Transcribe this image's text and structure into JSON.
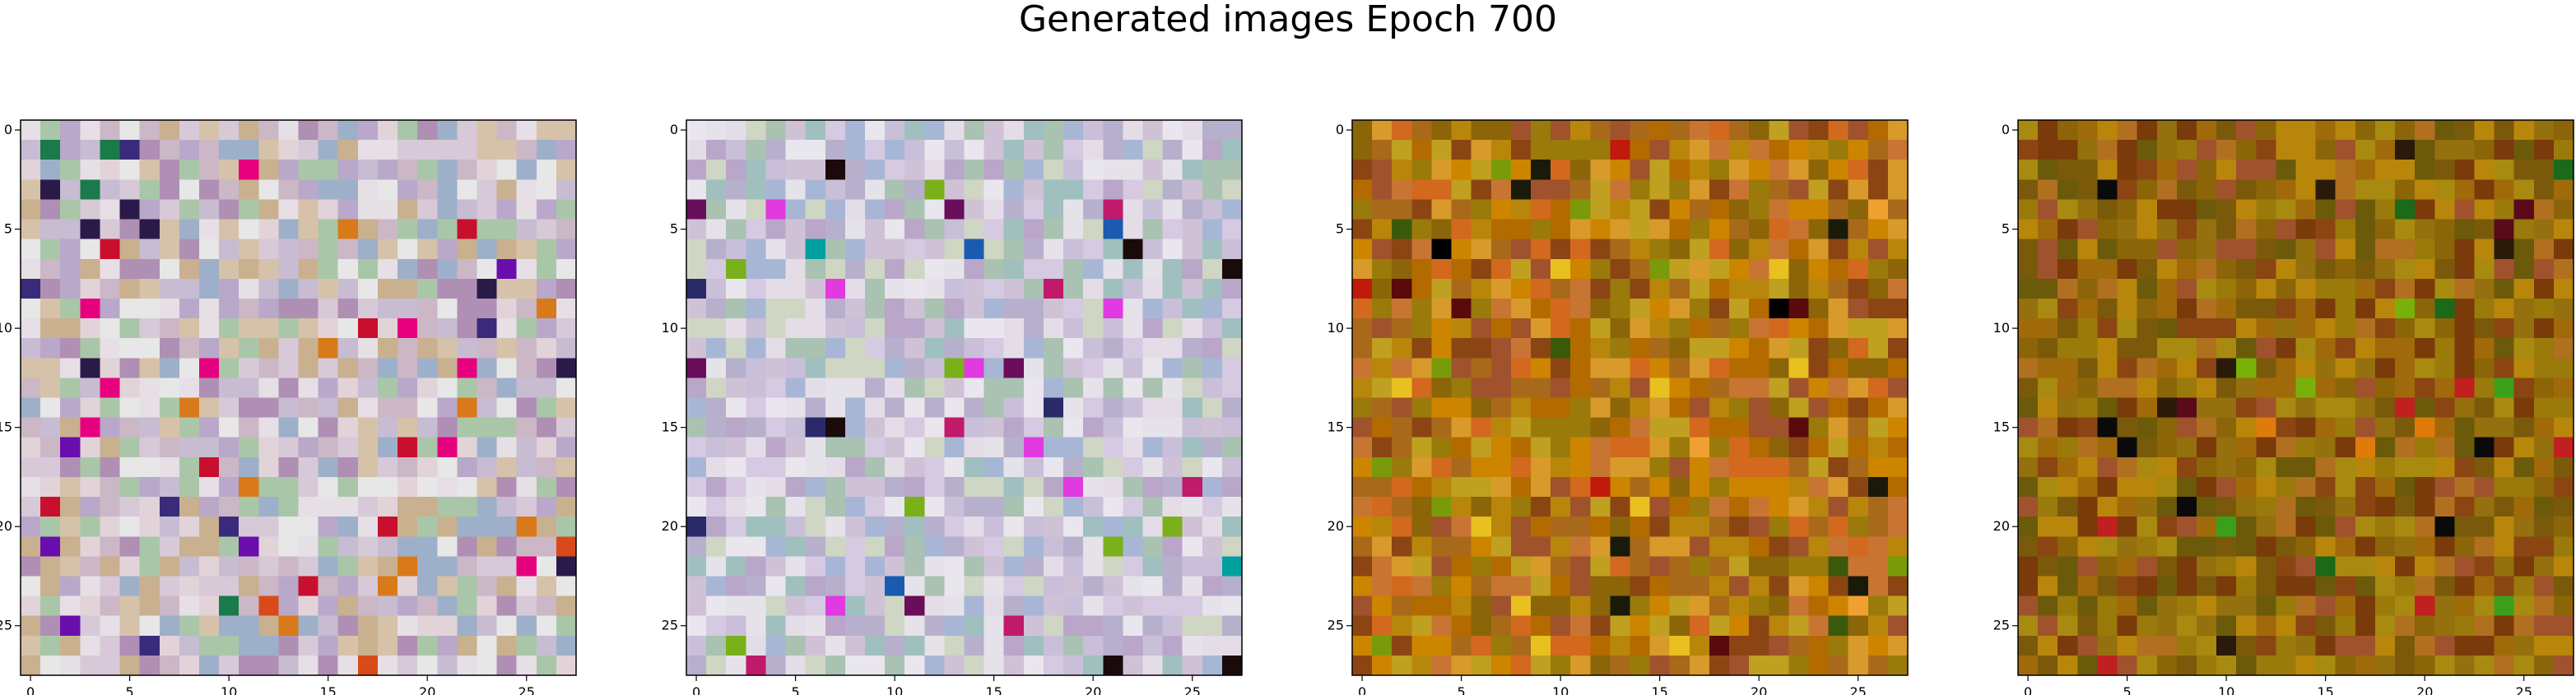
{
  "suptitle": "Generated images Epoch 700",
  "chart_data": [
    {
      "type": "heatmap",
      "grid_size": [
        28,
        28
      ],
      "xlim": [
        -0.5,
        27.5
      ],
      "ylim": [
        27.5,
        -0.5
      ],
      "xticks": [
        0,
        5,
        10,
        15,
        20,
        25
      ],
      "yticks": [
        0,
        5,
        10,
        15,
        20,
        25
      ],
      "palette": [
        "#d8c9d8",
        "#c7bcd2",
        "#e6dfe6",
        "#b9a8c9",
        "#a9c7a8",
        "#cbb7c6",
        "#e2d3d9",
        "#9eb0c9",
        "#c9b08f",
        "#e7e7e7",
        "#b08fb4",
        "#d6c2a8"
      ],
      "accent_colors": [
        "#c8102e",
        "#6a0dad",
        "#d97a1a",
        "#2a1a4a",
        "#1a7a4a",
        "#e6007e",
        "#3a2a7a",
        "#d94a1a"
      ]
    },
    {
      "type": "heatmap",
      "grid_size": [
        28,
        28
      ],
      "xlim": [
        -0.5,
        27.5
      ],
      "ylim": [
        27.5,
        -0.5
      ],
      "xticks": [
        0,
        5,
        10,
        15,
        20,
        25
      ],
      "yticks": [
        0,
        5,
        10,
        15,
        20,
        25
      ],
      "palette": [
        "#d6c9e2",
        "#c9bfd9",
        "#e4dde8",
        "#b7b0cc",
        "#a9c2b2",
        "#d0c2d6",
        "#e6e2ea",
        "#a8b6d6",
        "#b9a6c9",
        "#e9e6ee",
        "#9fc0bf",
        "#cfd6c4"
      ],
      "accent_colors": [
        "#1a0a0a",
        "#6a0d5a",
        "#1a5ab0",
        "#00a0a0",
        "#c01a6a",
        "#2a2a6a",
        "#7ab01a",
        "#e03ae0"
      ]
    },
    {
      "type": "heatmap",
      "grid_size": [
        28,
        28
      ],
      "xlim": [
        -0.5,
        27.5
      ],
      "ylim": [
        27.5,
        -0.5
      ],
      "xticks": [
        0,
        5,
        10,
        15,
        20,
        25
      ],
      "yticks": [
        0,
        5,
        10,
        15,
        20,
        25
      ],
      "palette": [
        "#b8860b",
        "#d2691e",
        "#cd8500",
        "#a0522d",
        "#8b6508",
        "#c87533",
        "#b36b00",
        "#9a7a0a",
        "#d89a2a",
        "#a86a1a",
        "#8b4513",
        "#c0a020"
      ],
      "accent_colors": [
        "#000000",
        "#5a0a0a",
        "#7a9a0a",
        "#e8c020",
        "#3a5a0a",
        "#c01a0a",
        "#1a1a0a",
        "#f0a030"
      ]
    },
    {
      "type": "heatmap",
      "grid_size": [
        28,
        28
      ],
      "xlim": [
        -0.5,
        27.5
      ],
      "ylim": [
        27.5,
        -0.5
      ],
      "xticks": [
        0,
        5,
        10,
        15,
        20,
        25
      ],
      "yticks": [
        0,
        5,
        10,
        15,
        20,
        25
      ],
      "palette": [
        "#8b6508",
        "#9a7a0a",
        "#a0522d",
        "#b8860b",
        "#7a5a0a",
        "#8b4513",
        "#a06a0a",
        "#6b5a0a",
        "#b07020",
        "#94700e",
        "#7a3a0a",
        "#a88a10"
      ],
      "accent_colors": [
        "#2a1a0a",
        "#1a6a1a",
        "#3aa01a",
        "#5a0a1a",
        "#0a0a0a",
        "#c02020",
        "#7ab00a",
        "#e07a0a"
      ]
    }
  ]
}
